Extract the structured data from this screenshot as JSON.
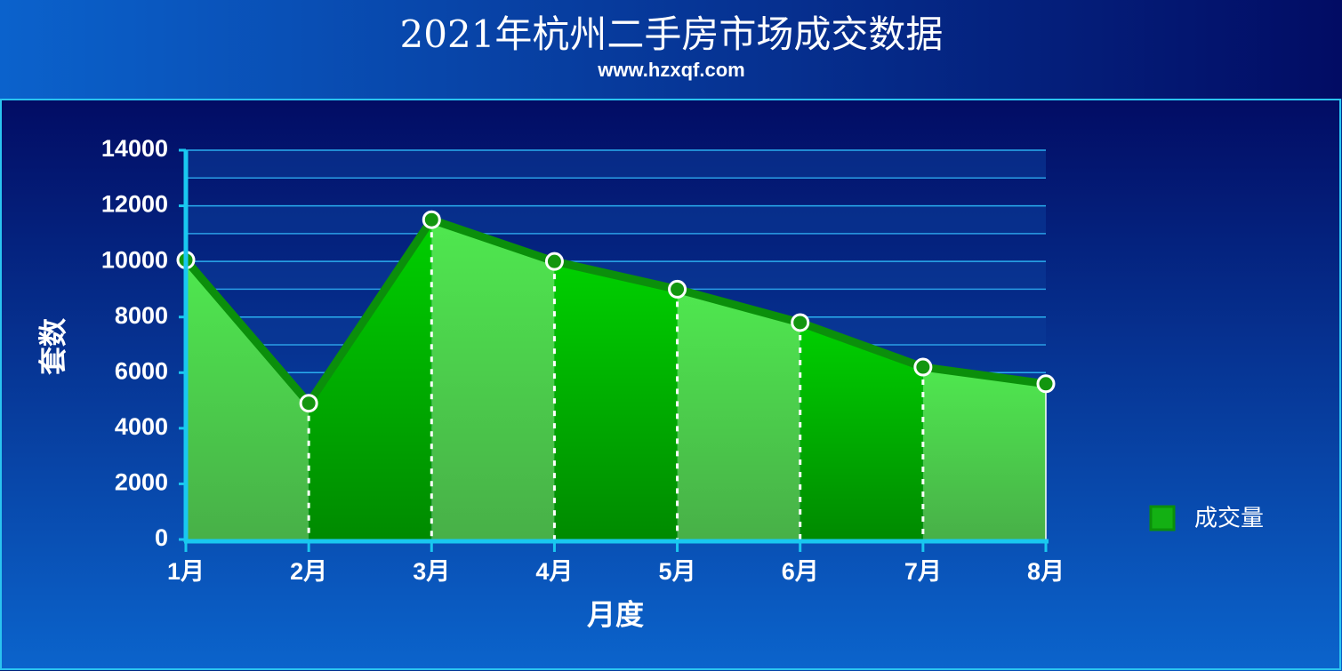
{
  "chart_data": {
    "type": "area",
    "title": "2021年杭州二手房市场成交数据",
    "subtitle": "www.hzxqf.com",
    "x_label": "月度",
    "y_label": "套数",
    "categories": [
      "1月",
      "2月",
      "3月",
      "4月",
      "5月",
      "6月",
      "7月",
      "8月"
    ],
    "series": [
      {
        "name": "成交量",
        "color": "#0b8f0b",
        "values": [
          10050,
          4900,
          11500,
          10000,
          9000,
          7800,
          6200,
          5600
        ]
      }
    ],
    "ylim": [
      0,
      14000
    ],
    "yticks": [
      0,
      2000,
      4000,
      6000,
      8000,
      10000,
      12000,
      14000
    ],
    "grid": true,
    "legend": "right"
  }
}
